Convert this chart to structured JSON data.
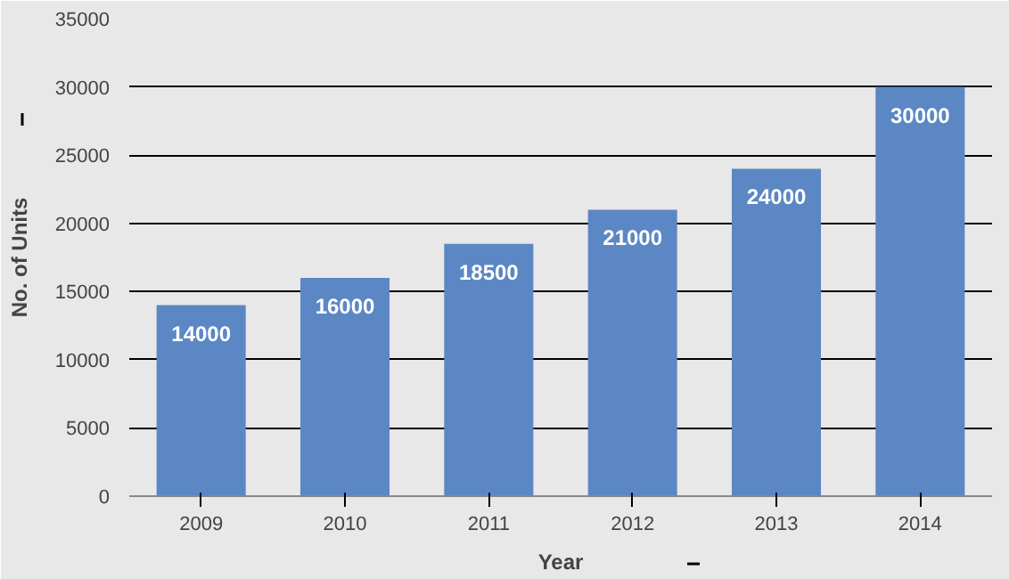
{
  "chart_data": {
    "type": "bar",
    "xlabel": "Year",
    "ylabel": "No. of Units",
    "categories": [
      "2009",
      "2010",
      "2011",
      "2012",
      "2013",
      "2014"
    ],
    "values": [
      14000,
      16000,
      18500,
      21000,
      24000,
      30000
    ],
    "color": "#5b87c5",
    "data_labels": true,
    "ylim": [
      0,
      35000
    ],
    "yticks": [
      0,
      5000,
      10000,
      15000,
      20000,
      25000,
      30000,
      35000
    ],
    "grid": "y"
  }
}
